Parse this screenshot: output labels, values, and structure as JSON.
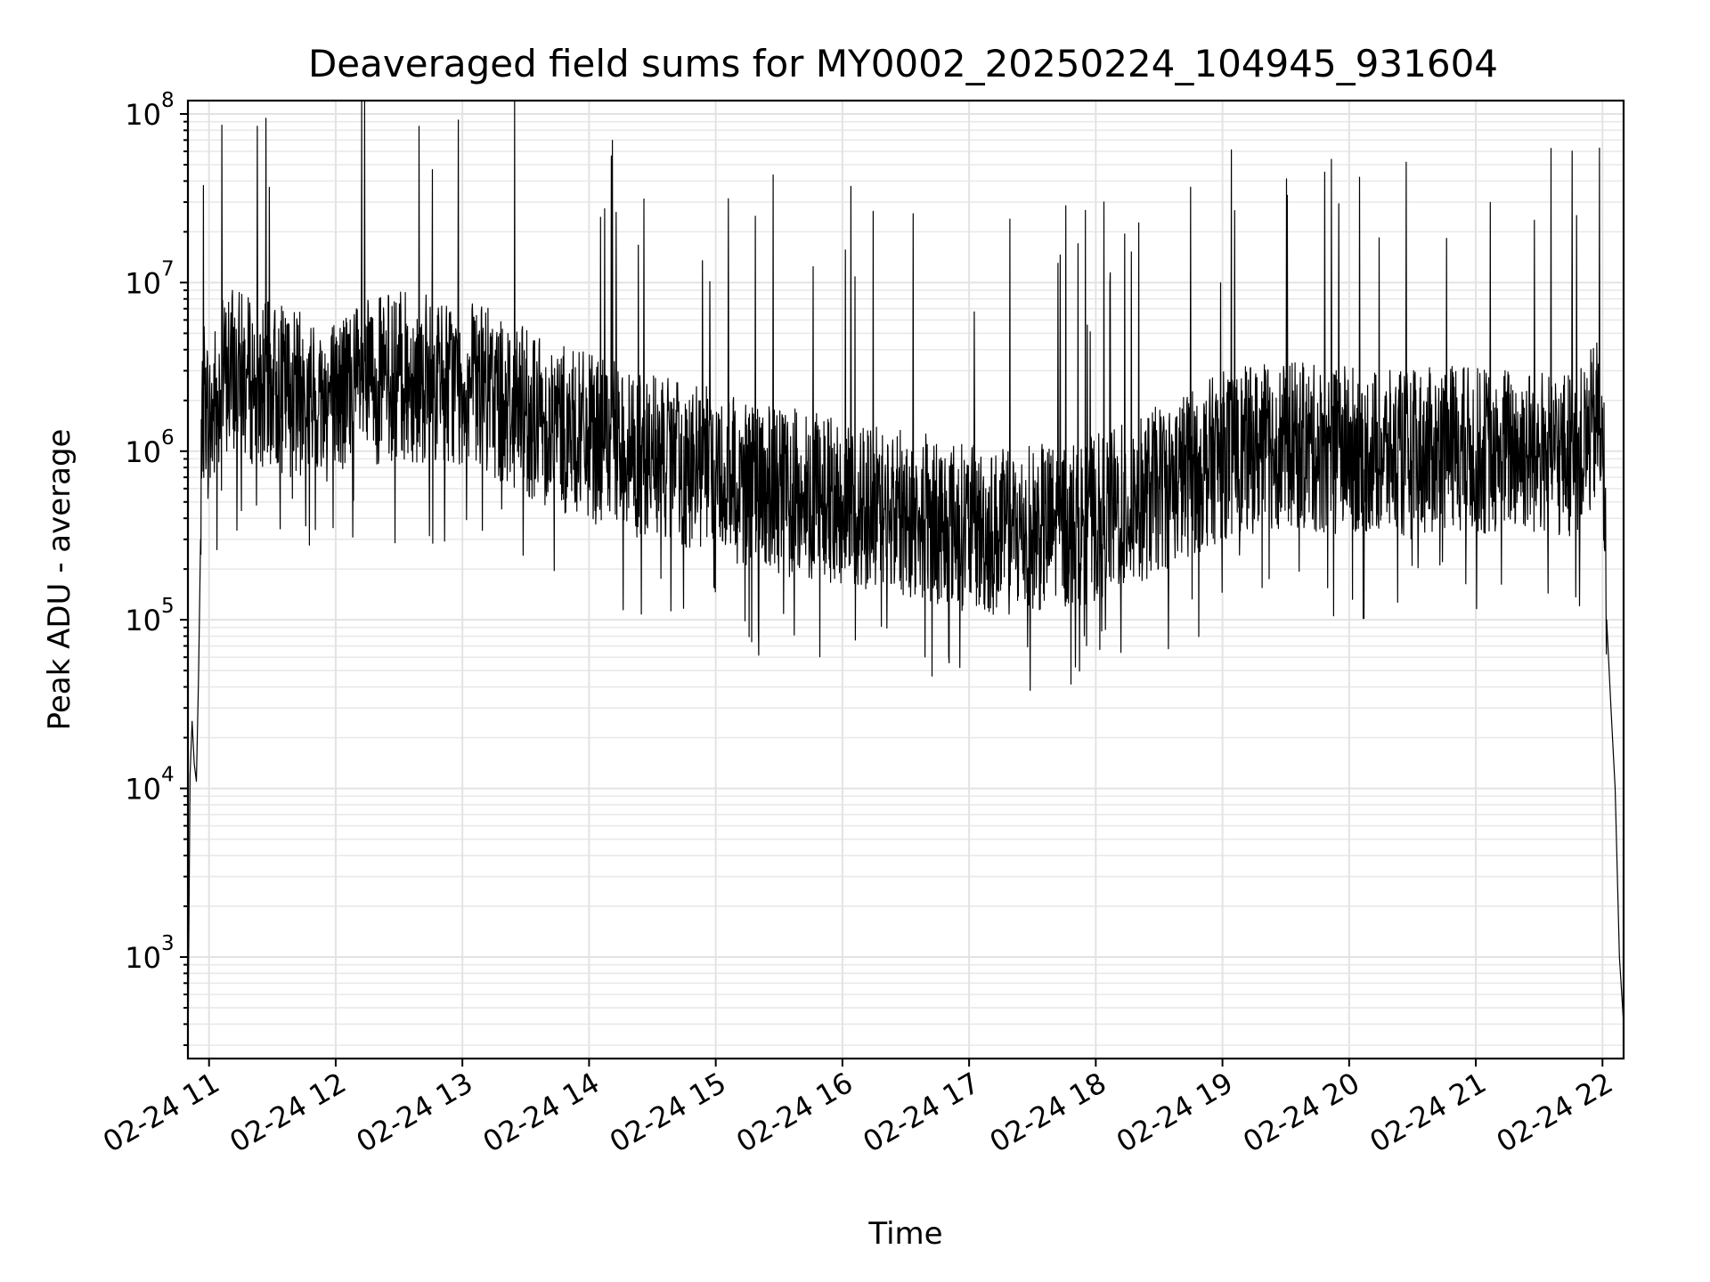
{
  "chart_data": {
    "type": "line",
    "title": "Deaveraged field sums for MY0002_20250224_104945_931604",
    "xlabel": "Time",
    "ylabel": "Peak ADU - average",
    "x_scale": "time",
    "y_scale": "log",
    "xlim": [
      "2025-02-24 10:50",
      "2025-02-24 22:10"
    ],
    "ylim": [
      250,
      120000000
    ],
    "x_tick_labels": [
      "02-24 11",
      "02-24 12",
      "02-24 13",
      "02-24 14",
      "02-24 15",
      "02-24 16",
      "02-24 17",
      "02-24 18",
      "02-24 19",
      "02-24 20",
      "02-24 21",
      "02-24 22"
    ],
    "x_tick_times": [
      "2025-02-24 11:00",
      "2025-02-24 12:00",
      "2025-02-24 13:00",
      "2025-02-24 14:00",
      "2025-02-24 15:00",
      "2025-02-24 16:00",
      "2025-02-24 17:00",
      "2025-02-24 18:00",
      "2025-02-24 19:00",
      "2025-02-24 20:00",
      "2025-02-24 21:00",
      "2025-02-24 22:00"
    ],
    "y_ticks": [
      {
        "base": "10",
        "exp": "3",
        "value": 1000
      },
      {
        "base": "10",
        "exp": "4",
        "value": 10000
      },
      {
        "base": "10",
        "exp": "5",
        "value": 100000
      },
      {
        "base": "10",
        "exp": "6",
        "value": 1000000
      },
      {
        "base": "10",
        "exp": "7",
        "value": 10000000
      },
      {
        "base": "10",
        "exp": "8",
        "value": 100000000
      }
    ],
    "grid": true,
    "series_color": "#000000",
    "series": [
      {
        "x": [
          "10:50",
          "10:51",
          "10:52",
          "10:53",
          "10:54",
          "10:55",
          "10:56",
          "10:57",
          "10:58",
          "10:59",
          "11:00",
          "11:05",
          "11:10",
          "11:15",
          "11:20",
          "11:25",
          "11:30",
          "11:40",
          "11:50",
          "12:00",
          "12:10",
          "12:20",
          "12:30",
          "12:40",
          "12:50",
          "13:00",
          "13:10",
          "13:20",
          "13:30",
          "13:40",
          "13:50",
          "14:00",
          "14:10",
          "14:20",
          "14:30",
          "14:40",
          "14:50",
          "15:00",
          "15:10",
          "15:20",
          "15:30",
          "15:40",
          "15:50",
          "16:00",
          "16:10",
          "16:20",
          "16:30",
          "16:40",
          "16:50",
          "17:00",
          "17:10",
          "17:20",
          "17:30",
          "17:40",
          "17:50",
          "18:00",
          "18:10",
          "18:20",
          "18:30",
          "18:40",
          "18:50",
          "19:00",
          "19:10",
          "19:20",
          "19:30",
          "19:40",
          "19:50",
          "20:00",
          "20:10",
          "20:20",
          "20:30",
          "20:40",
          "20:50",
          "21:00",
          "21:10",
          "21:20",
          "21:30",
          "21:40",
          "21:50",
          "21:55",
          "22:00",
          "22:02",
          "22:04",
          "22:06",
          "22:08",
          "22:10"
        ],
        "values": [
          250,
          12000,
          25000,
          14000,
          11000,
          45000,
          300000,
          1400000,
          2500000,
          1800000,
          1300000,
          2500000,
          3000000,
          2800000,
          2600000,
          2500000,
          2400000,
          2200000,
          2000000,
          2100000,
          2400000,
          2600000,
          2800000,
          2700000,
          2600000,
          2500000,
          2300000,
          2000000,
          1700000,
          1500000,
          1300000,
          1200000,
          1100000,
          1000000,
          900000,
          850000,
          800000,
          750000,
          650000,
          600000,
          580000,
          560000,
          550000,
          500000,
          480000,
          450000,
          420000,
          400000,
          380000,
          350000,
          330000,
          330000,
          340000,
          360000,
          380000,
          400000,
          450000,
          500000,
          600000,
          700000,
          800000,
          950000,
          1000000,
          1050000,
          1100000,
          1050000,
          1000000,
          1050000,
          1000000,
          950000,
          950000,
          1000000,
          1050000,
          1000000,
          1000000,
          1050000,
          1000000,
          950000,
          1000000,
          1300000,
          1800000,
          100000,
          30000,
          10000,
          1000,
          400
        ]
      }
    ]
  }
}
